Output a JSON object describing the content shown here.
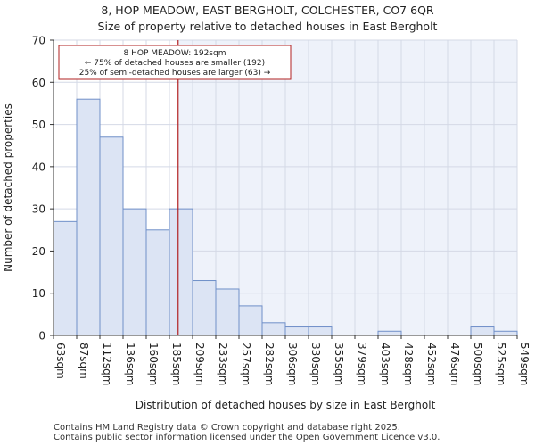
{
  "chart_data": {
    "type": "histogram",
    "title": "8, HOP MEADOW, EAST BERGHOLT, COLCHESTER, CO7 6QR",
    "subtitle": "Size of property relative to detached houses in East Bergholt",
    "xlabel": "Distribution of detached houses by size in East Bergholt",
    "ylabel": "Number of detached properties",
    "ylim": [
      0,
      70
    ],
    "yticks": [
      0,
      10,
      20,
      30,
      40,
      50,
      60,
      70
    ],
    "categories": [
      "63sqm",
      "87sqm",
      "112sqm",
      "136sqm",
      "160sqm",
      "185sqm",
      "209sqm",
      "233sqm",
      "257sqm",
      "282sqm",
      "306sqm",
      "330sqm",
      "355sqm",
      "379sqm",
      "403sqm",
      "428sqm",
      "452sqm",
      "476sqm",
      "500sqm",
      "525sqm",
      "549sqm"
    ],
    "values": [
      27,
      56,
      47,
      30,
      25,
      30,
      13,
      11,
      7,
      3,
      2,
      2,
      0,
      0,
      1,
      0,
      0,
      0,
      2,
      1
    ],
    "marker": {
      "value": 192,
      "unit": "sqm",
      "color": "#b22222",
      "annotation": [
        "8 HOP MEADOW: 192sqm",
        "← 75% of detached houses are smaller (192)",
        "25% of semi-detached houses are larger (63) →"
      ]
    },
    "colors": {
      "bar_fill": "#dce4f4",
      "bar_edge": "#6f8fc8",
      "highlight_bg": "#eef2fa",
      "grid": "#d4d9e6"
    }
  },
  "footer": {
    "line1": "Contains HM Land Registry data © Crown copyright and database right 2025.",
    "line2": "Contains public sector information licensed under the Open Government Licence v3.0."
  }
}
